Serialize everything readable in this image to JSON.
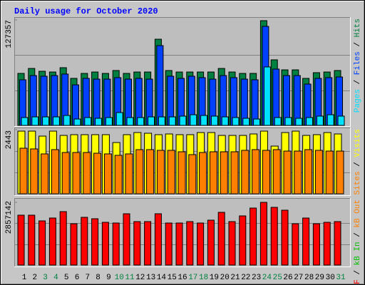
{
  "chart_data": [
    {
      "type": "bar",
      "title": "Daily usage for October 2020",
      "ylim": [
        0,
        127357
      ],
      "yticks": [
        127357
      ],
      "gridlines": [
        42452,
        84905
      ],
      "legend_separator": " / ",
      "series": [
        {
          "name": "Hits",
          "color": "#008040",
          "values": [
            62800,
            68800,
            65400,
            64500,
            69700,
            56800,
            62800,
            64500,
            62800,
            66300,
            62800,
            64500,
            64500,
            104100,
            66300,
            64500,
            64500,
            64500,
            64500,
            68800,
            64500,
            62800,
            62800,
            126500,
            79200,
            67100,
            67100,
            56800,
            63700,
            64500,
            66300
          ]
        },
        {
          "name": "Files",
          "color": "#0040ff",
          "values": [
            55100,
            60200,
            59400,
            60200,
            62000,
            49000,
            56800,
            55900,
            55900,
            57700,
            55900,
            56800,
            55900,
            96400,
            59400,
            56800,
            59400,
            57700,
            55900,
            60200,
            57700,
            55900,
            55100,
            119600,
            68000,
            60200,
            60200,
            49900,
            56800,
            57700,
            58500
          ]
        },
        {
          "name": "Pages",
          "color": "#00e0ff",
          "values": [
            9500,
            10300,
            10300,
            10300,
            12000,
            7700,
            9500,
            8600,
            9500,
            15500,
            9500,
            9500,
            10300,
            10300,
            10300,
            11200,
            12900,
            12000,
            11200,
            10300,
            9500,
            8600,
            7700,
            70600,
            9500,
            9500,
            8600,
            9500,
            11200,
            12900,
            11200
          ]
        }
      ]
    },
    {
      "type": "bar",
      "ylim": [
        0,
        2443
      ],
      "yticks": [
        2443
      ],
      "gridlines": [
        814,
        1629
      ],
      "legend_separator": " / ",
      "series": [
        {
          "name": "Visits",
          "color": "#ffff00",
          "values": [
            2388,
            2388,
            2198,
            2388,
            2225,
            2253,
            2253,
            2253,
            2253,
            1954,
            2253,
            2334,
            2307,
            2253,
            2280,
            2253,
            2253,
            2334,
            2334,
            2225,
            2225,
            2225,
            2280,
            2388,
            1818,
            2334,
            2388,
            2225,
            2253,
            2334,
            2280
          ]
        },
        {
          "name": "Sites",
          "color": "#ff8000",
          "values": [
            1737,
            1710,
            1520,
            1683,
            1574,
            1574,
            1574,
            1547,
            1520,
            1466,
            1520,
            1683,
            1683,
            1656,
            1656,
            1601,
            1493,
            1574,
            1601,
            1601,
            1601,
            1656,
            1683,
            1656,
            1683,
            1628,
            1628,
            1683,
            1656,
            1628,
            1628
          ]
        }
      ]
    },
    {
      "type": "bar",
      "ylim": [
        0,
        2857142
      ],
      "yticks": [
        2857142
      ],
      "gridlines": [
        952381,
        1904761
      ],
      "legend_separator": " / ",
      "categories": [
        "1",
        "2",
        "3",
        "4",
        "5",
        "6",
        "7",
        "8",
        "9",
        "10",
        "11",
        "12",
        "13",
        "14",
        "15",
        "16",
        "17",
        "18",
        "19",
        "20",
        "21",
        "22",
        "23",
        "24",
        "25",
        "26",
        "27",
        "28",
        "29",
        "30",
        "31"
      ],
      "category_colors": [
        "#000000",
        "#000000",
        "#008040",
        "#008040",
        "#000000",
        "#000000",
        "#000000",
        "#000000",
        "#000000",
        "#008040",
        "#008040",
        "#000000",
        "#000000",
        "#000000",
        "#000000",
        "#000000",
        "#008040",
        "#008040",
        "#000000",
        "#000000",
        "#000000",
        "#000000",
        "#000000",
        "#008040",
        "#008040",
        "#000000",
        "#000000",
        "#000000",
        "#000000",
        "#000000",
        "#008040"
      ],
      "series": [
        {
          "name": "kB Out",
          "color": "#ff8000",
          "values": [
            0,
            0,
            0,
            0,
            0,
            0,
            0,
            0,
            0,
            0,
            0,
            0,
            0,
            0,
            0,
            0,
            0,
            0,
            0,
            0,
            0,
            0,
            0,
            0,
            0,
            0,
            0,
            0,
            0,
            0,
            0
          ]
        },
        {
          "name": "kB In",
          "color": "#00c000",
          "values": [
            0,
            0,
            0,
            0,
            0,
            0,
            0,
            0,
            0,
            0,
            0,
            0,
            0,
            0,
            0,
            0,
            0,
            0,
            0,
            0,
            0,
            0,
            0,
            0,
            0,
            0,
            0,
            0,
            0,
            0,
            0
          ]
        },
        {
          "name": "kB F",
          "color": "#ff0000",
          "values": [
            2272800,
            2272800,
            2013000,
            2142900,
            2435100,
            1883100,
            2175400,
            2110400,
            1948100,
            1915600,
            2337700,
            1980500,
            1980500,
            2337700,
            1915600,
            1915600,
            1980500,
            1915600,
            2045500,
            2402600,
            1980500,
            2240300,
            2597400,
            2857100,
            2629900,
            2500000,
            1883100,
            2142900,
            1883100,
            1948100,
            1980500
          ]
        }
      ]
    }
  ]
}
